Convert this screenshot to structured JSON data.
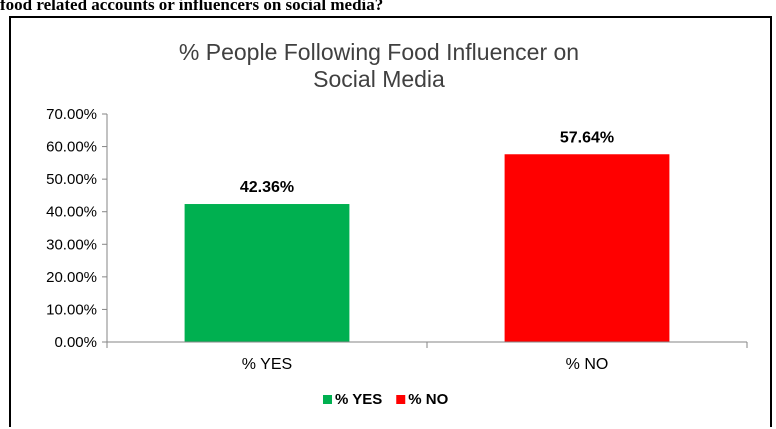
{
  "header_text": "food related accounts or influencers on social media?",
  "chart_data": {
    "type": "bar",
    "title": "% People Following Food Influencer on Social Media",
    "title_lines": [
      "% People Following Food Influencer on",
      "Social Media"
    ],
    "categories": [
      "% YES",
      "% NO"
    ],
    "values": [
      42.36,
      57.64
    ],
    "data_labels": [
      "42.36%",
      "57.64%"
    ],
    "colors": [
      "#00B050",
      "#FF0000"
    ],
    "ylim": [
      0,
      70
    ],
    "yticks": [
      0,
      10,
      20,
      30,
      40,
      50,
      60,
      70
    ],
    "ytick_labels": [
      "0.00%",
      "10.00%",
      "20.00%",
      "30.00%",
      "40.00%",
      "50.00%",
      "60.00%",
      "70.00%"
    ],
    "grid": false,
    "legend": {
      "position": "bottom",
      "entries": [
        {
          "label": "% YES",
          "color": "#00B050"
        },
        {
          "label": "% NO",
          "color": "#FF0000"
        }
      ]
    }
  }
}
